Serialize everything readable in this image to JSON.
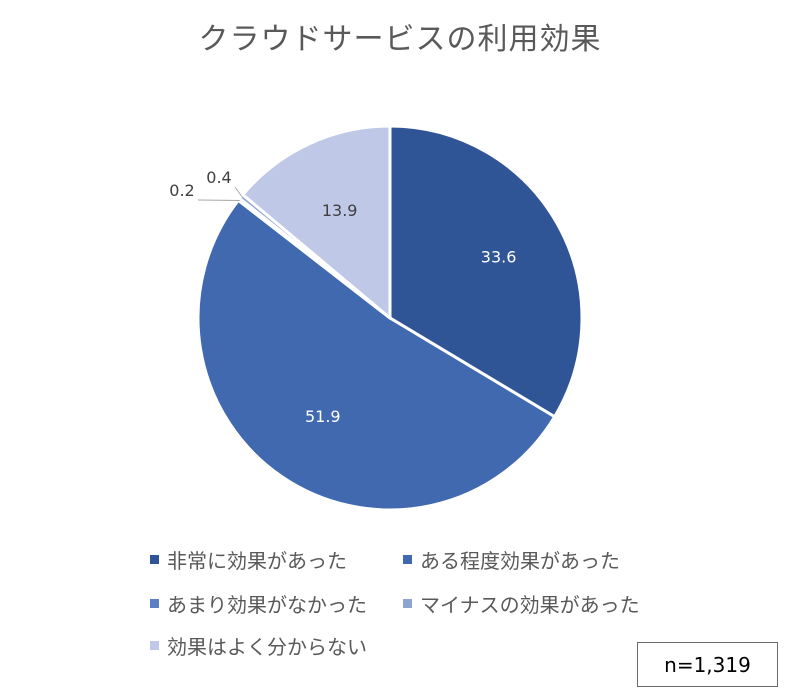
{
  "chart_data": {
    "type": "pie",
    "title": "クラウドサービスの利用効果",
    "start_angle_deg": 0,
    "direction": "clockwise",
    "slices": [
      {
        "label": "非常に効果があった",
        "value": 33.6,
        "color": "#2f5597",
        "label_text": "33.6"
      },
      {
        "label": "ある程度効果があった",
        "value": 51.9,
        "color": "#4169b0",
        "label_text": "51.9"
      },
      {
        "label": "あまり効果がなかった",
        "value": 0.2,
        "color": "#5b7fc4",
        "label_text": "0.2"
      },
      {
        "label": "マイナスの効果があった",
        "value": 0.4,
        "color": "#8ea4d2",
        "label_text": "0.4"
      },
      {
        "label": "効果はよく分からない",
        "value": 13.9,
        "color": "#bfc8e6",
        "label_text": "13.9"
      }
    ]
  },
  "legend": [
    {
      "label": "非常に効果があった",
      "color": "#2f5597"
    },
    {
      "label": "ある程度効果があった",
      "color": "#4169b0"
    },
    {
      "label": "あまり効果がなかった",
      "color": "#5b7fc4"
    },
    {
      "label": "マイナスの効果があった",
      "color": "#8ea4d2"
    },
    {
      "label": "効果はよく分からない",
      "color": "#bfc8e6"
    }
  ],
  "sample_size": "n=1,319"
}
